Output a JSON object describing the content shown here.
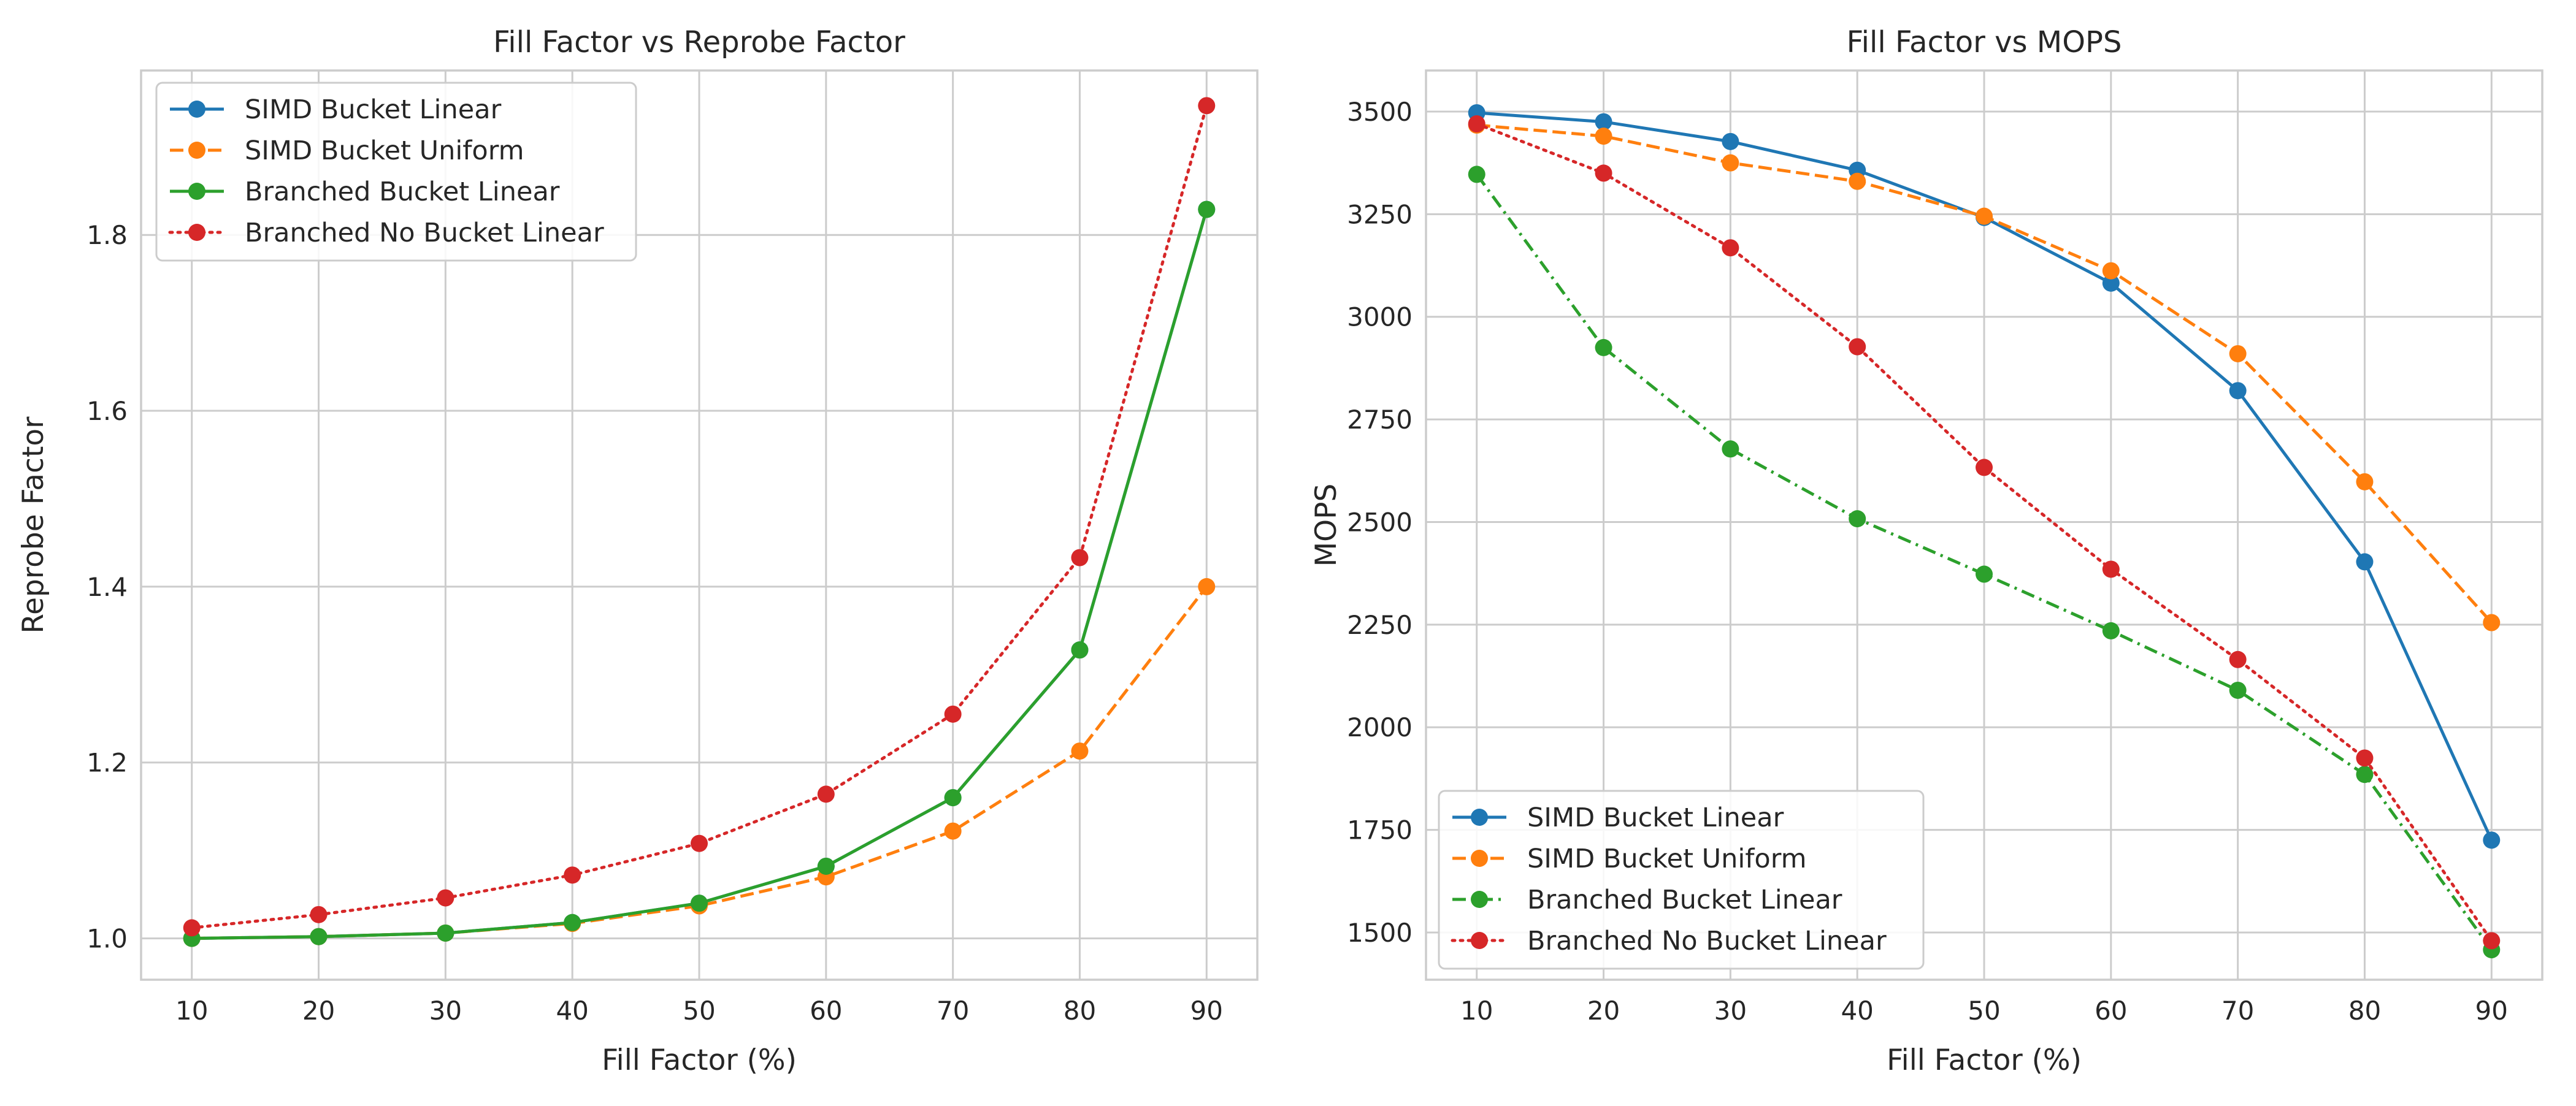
{
  "chart_data": [
    {
      "type": "line",
      "title": "Fill Factor vs Reprobe Factor",
      "xlabel": "Fill Factor (%)",
      "ylabel": "Reprobe Factor",
      "x": [
        10,
        20,
        30,
        40,
        50,
        60,
        70,
        80,
        90
      ],
      "xlim": [
        6,
        94
      ],
      "ylim": [
        0.953,
        1.987
      ],
      "xticks": [
        10,
        20,
        30,
        40,
        50,
        60,
        70,
        80,
        90
      ],
      "yticks": [
        1.0,
        1.2,
        1.4,
        1.6,
        1.8
      ],
      "ytick_labels": [
        "1.0",
        "1.2",
        "1.4",
        "1.6",
        "1.8"
      ],
      "grid": true,
      "legend": "upper left",
      "series": [
        {
          "name": "SIMD Bucket Linear",
          "color": "#1f77b4",
          "dash": "solid",
          "values": [
            1.0,
            1.002,
            1.006,
            1.018,
            1.04,
            1.082,
            1.16,
            1.328,
            1.829
          ]
        },
        {
          "name": "SIMD Bucket Uniform",
          "color": "#ff7f0e",
          "dash": "dashed",
          "values": [
            1.0,
            1.002,
            1.006,
            1.017,
            1.037,
            1.07,
            1.122,
            1.213,
            1.4
          ]
        },
        {
          "name": "Branched Bucket Linear",
          "color": "#2ca02c",
          "dash": "solid",
          "values": [
            1.0,
            1.002,
            1.006,
            1.018,
            1.04,
            1.082,
            1.16,
            1.328,
            1.829
          ]
        },
        {
          "name": "Branched No Bucket Linear",
          "color": "#d62728",
          "dash": "dotted",
          "values": [
            1.012,
            1.027,
            1.046,
            1.072,
            1.108,
            1.164,
            1.255,
            1.433,
            1.947
          ]
        }
      ]
    },
    {
      "type": "line",
      "title": "Fill Factor vs MOPS",
      "xlabel": "Fill Factor (%)",
      "ylabel": "MOPS",
      "x": [
        10,
        20,
        30,
        40,
        50,
        60,
        70,
        80,
        90
      ],
      "xlim": [
        6,
        94
      ],
      "ylim": [
        1385,
        3600
      ],
      "xticks": [
        10,
        20,
        30,
        40,
        50,
        60,
        70,
        80,
        90
      ],
      "yticks": [
        1500,
        1750,
        2000,
        2250,
        2500,
        2750,
        3000,
        3250,
        3500
      ],
      "ytick_labels": [
        "1500",
        "1750",
        "2000",
        "2250",
        "2500",
        "2750",
        "3000",
        "3250",
        "3500"
      ],
      "grid": true,
      "legend": "lower left",
      "series": [
        {
          "name": "SIMD Bucket Linear",
          "color": "#1f77b4",
          "dash": "solid",
          "values": [
            3497,
            3475,
            3427,
            3357,
            3242,
            3082,
            2820,
            2403,
            1725
          ]
        },
        {
          "name": "SIMD Bucket Uniform",
          "color": "#ff7f0e",
          "dash": "dashed",
          "values": [
            3467,
            3440,
            3375,
            3330,
            3245,
            3112,
            2910,
            2598,
            2255
          ]
        },
        {
          "name": "Branched Bucket Linear",
          "color": "#2ca02c",
          "dash": "dashdot",
          "values": [
            3347,
            2925,
            2678,
            2508,
            2373,
            2235,
            2090,
            1885,
            1458
          ]
        },
        {
          "name": "Branched No Bucket Linear",
          "color": "#d62728",
          "dash": "dotted",
          "values": [
            3470,
            3350,
            3168,
            2927,
            2633,
            2385,
            2165,
            1925,
            1480
          ]
        }
      ]
    }
  ]
}
